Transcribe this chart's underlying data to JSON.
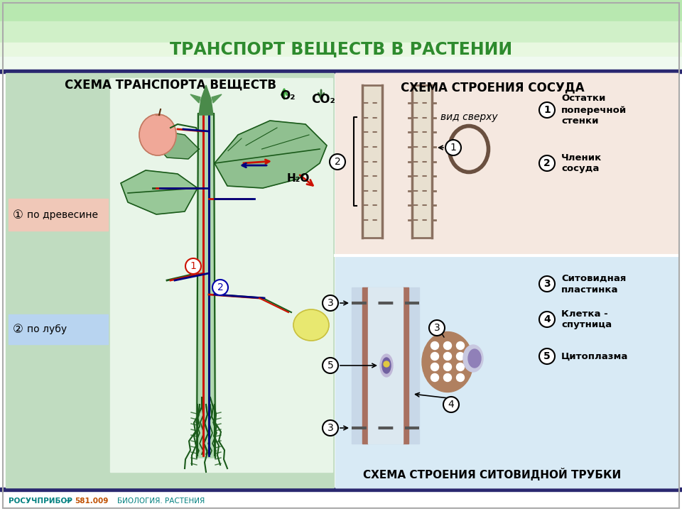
{
  "title": "ТРАНСПОРТ ВЕЩЕСТВ В РАСТЕНИИ",
  "title_color": "#2e8b2e",
  "header_bg_top": "#c8f0c0",
  "header_bg_bottom": "#e8fae0",
  "main_bg": "#ffffff",
  "left_panel_bg": "#c5dfc5",
  "left_inner_bg": "#ffffff",
  "right_top_bg": "#f5e8e0",
  "right_bottom_bg": "#d8eaf5",
  "bottom_bar_color": "#2a2870",
  "footer_bg": "#ffffff",
  "footer_text": "РОСУЧПРИБОР",
  "footer_num": "581.009",
  "footer_label": "БИОЛОГИЯ. РАСТЕНИЯ",
  "left_title": "СХЕМА ТРАНСПОРТА ВЕЩЕСТВ",
  "right_title_top": "СХЕМА СТРОЕНИЯ СОСУДА",
  "right_title_bottom": "СХЕМА СТРОЕНИЯ СИТОВИДНОЙ ТРУБКИ",
  "label_po_drevesine": "по древесине",
  "label_po_lubu": "по лубу",
  "label_O2": "O₂",
  "label_CO2": "CO₂",
  "label_H2O": "H₂O",
  "right_labels": [
    "Остатки\nпоперечной\nстенки",
    "Членик\nсосуда",
    "Ситовидная\nпластинка",
    "Клетка -\nспутница",
    "Цитоплазма"
  ],
  "right_numbers": [
    "1",
    "2",
    "3",
    "4",
    "5"
  ],
  "vid_sverhu": "вид сверху",
  "red_color": "#cc1100",
  "blue_color": "#1010cc",
  "dark_blue": "#000080",
  "green_color": "#2a7a2a",
  "green_dark": "#1a5a1a",
  "leaf_color": "#8cbd8c",
  "leaf_dark": "#5a9a5a",
  "pink_box_bg": "#f0c8b8",
  "blue_box_bg": "#b8d4f0",
  "apple_color": "#f0a898",
  "yellow_fruit": "#e8e870",
  "vessel_color": "#8a7060",
  "vessel_fill": "#e8e0d0",
  "sieve_fill": "#c8d8e8",
  "sieve_side": "#a87060",
  "companion_outer": "#b89070",
  "companion_dots": "#d8b888",
  "nucleus_color": "#7060a0",
  "cytoplasm_color": "#8070b0"
}
